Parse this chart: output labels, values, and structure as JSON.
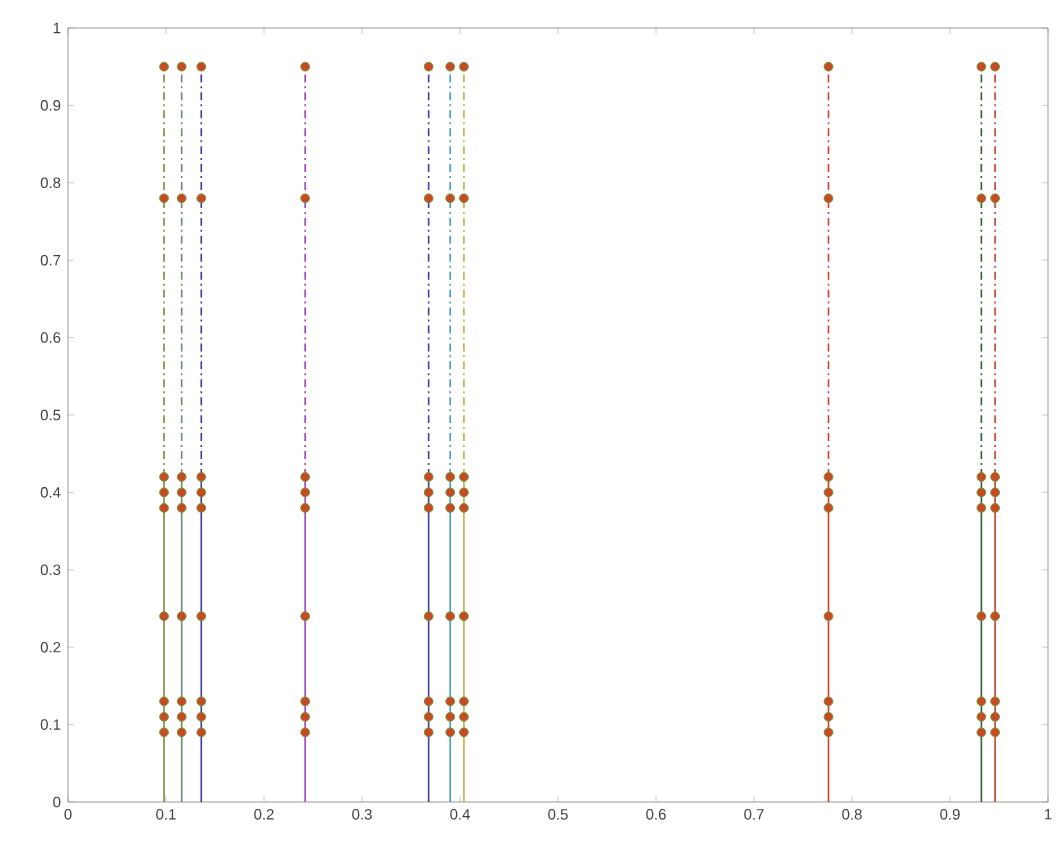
{
  "chart_data": {
    "type": "line",
    "xlim": [
      0,
      1
    ],
    "ylim": [
      0,
      1
    ],
    "xticks": [
      {
        "value": 0,
        "label": "0"
      },
      0.1,
      0.2,
      0.3,
      0.4,
      0.5,
      0.6,
      0.7,
      0.8,
      0.9,
      {
        "value": 1,
        "label": "1"
      }
    ],
    "yticks": [
      {
        "value": 0,
        "label": "0"
      },
      0.1,
      0.2,
      0.3,
      0.4,
      0.5,
      0.6,
      0.7,
      0.8,
      0.9,
      {
        "value": 1,
        "label": "1"
      }
    ],
    "grid": false,
    "series": [
      {
        "x": [
          0.098,
          0.098
        ],
        "values": [
          0,
          0.42
        ],
        "color": "#7a8a3a",
        "line_style": "solid",
        "marker": "none"
      },
      {
        "x": [
          0.098,
          0.098
        ],
        "values": [
          0.42,
          0.95
        ],
        "color": "#7a8a3a",
        "line_style": "dashed",
        "marker": "none"
      },
      {
        "x": [
          0.116,
          0.116
        ],
        "values": [
          0,
          0.42
        ],
        "color": "#6a8a6a",
        "line_style": "solid",
        "marker": "none"
      },
      {
        "x": [
          0.116,
          0.116
        ],
        "values": [
          0.42,
          0.95
        ],
        "color": "#6a8a6a",
        "line_style": "dashed",
        "marker": "none"
      },
      {
        "x": [
          0.136,
          0.136
        ],
        "values": [
          0,
          0.42
        ],
        "color": "#3a3aa0",
        "line_style": "solid",
        "marker": "none"
      },
      {
        "x": [
          0.136,
          0.136
        ],
        "values": [
          0.42,
          0.95
        ],
        "color": "#3a3aa0",
        "line_style": "dashed",
        "marker": "none"
      },
      {
        "x": [
          0.242,
          0.242
        ],
        "values": [
          0,
          0.42
        ],
        "color": "#a040c0",
        "line_style": "solid",
        "marker": "none"
      },
      {
        "x": [
          0.242,
          0.242
        ],
        "values": [
          0.42,
          0.95
        ],
        "color": "#a040c0",
        "line_style": "dashed",
        "marker": "none"
      },
      {
        "x": [
          0.368,
          0.368
        ],
        "values": [
          0,
          0.42
        ],
        "color": "#4040a0",
        "line_style": "solid",
        "marker": "none"
      },
      {
        "x": [
          0.368,
          0.368
        ],
        "values": [
          0.42,
          0.95
        ],
        "color": "#4040a0",
        "line_style": "dashed",
        "marker": "none"
      },
      {
        "x": [
          0.39,
          0.39
        ],
        "values": [
          0,
          0.42
        ],
        "color": "#40a0c0",
        "line_style": "solid",
        "marker": "none"
      },
      {
        "x": [
          0.39,
          0.39
        ],
        "values": [
          0.42,
          0.95
        ],
        "color": "#40a0c0",
        "line_style": "dashed",
        "marker": "none"
      },
      {
        "x": [
          0.404,
          0.404
        ],
        "values": [
          0,
          0.42
        ],
        "color": "#c0b040",
        "line_style": "solid",
        "marker": "none"
      },
      {
        "x": [
          0.404,
          0.404
        ],
        "values": [
          0.42,
          0.95
        ],
        "color": "#c0b040",
        "line_style": "dashed",
        "marker": "none"
      },
      {
        "x": [
          0.776,
          0.776
        ],
        "values": [
          0,
          0.42
        ],
        "color": "#d04030",
        "line_style": "solid",
        "marker": "none"
      },
      {
        "x": [
          0.776,
          0.776
        ],
        "values": [
          0.42,
          0.95
        ],
        "color": "#d04030",
        "line_style": "dashed",
        "marker": "none"
      },
      {
        "x": [
          0.932,
          0.932
        ],
        "values": [
          0,
          0.42
        ],
        "color": "#306030",
        "line_style": "solid",
        "marker": "none"
      },
      {
        "x": [
          0.932,
          0.932
        ],
        "values": [
          0.42,
          0.95
        ],
        "color": "#306030",
        "line_style": "dashed",
        "marker": "none"
      },
      {
        "x": [
          0.946,
          0.946
        ],
        "values": [
          0,
          0.42
        ],
        "color": "#c04030",
        "line_style": "solid",
        "marker": "none"
      },
      {
        "x": [
          0.946,
          0.946
        ],
        "values": [
          0.42,
          0.95
        ],
        "color": "#c04030",
        "line_style": "dashed",
        "marker": "none"
      },
      {
        "type": "scatter",
        "color": "#c84a22",
        "marker": "circle",
        "x": [
          0.098,
          0.098,
          0.098,
          0.098,
          0.098,
          0.098,
          0.098,
          0.098,
          0.098,
          0.116,
          0.116,
          0.116,
          0.116,
          0.116,
          0.116,
          0.116,
          0.116,
          0.116,
          0.136,
          0.136,
          0.136,
          0.136,
          0.136,
          0.136,
          0.136,
          0.136,
          0.136,
          0.242,
          0.242,
          0.242,
          0.242,
          0.242,
          0.242,
          0.242,
          0.242,
          0.242,
          0.368,
          0.368,
          0.368,
          0.368,
          0.368,
          0.368,
          0.368,
          0.368,
          0.368,
          0.39,
          0.39,
          0.39,
          0.39,
          0.39,
          0.39,
          0.39,
          0.39,
          0.39,
          0.404,
          0.404,
          0.404,
          0.404,
          0.404,
          0.404,
          0.404,
          0.404,
          0.404,
          0.776,
          0.776,
          0.776,
          0.776,
          0.776,
          0.776,
          0.776,
          0.776,
          0.776,
          0.932,
          0.932,
          0.932,
          0.932,
          0.932,
          0.932,
          0.932,
          0.932,
          0.932,
          0.946,
          0.946,
          0.946,
          0.946,
          0.946,
          0.946,
          0.946,
          0.946,
          0.946
        ],
        "values": [
          0.09,
          0.11,
          0.13,
          0.24,
          0.38,
          0.4,
          0.42,
          0.78,
          0.95,
          0.09,
          0.11,
          0.13,
          0.24,
          0.38,
          0.4,
          0.42,
          0.78,
          0.95,
          0.09,
          0.11,
          0.13,
          0.24,
          0.38,
          0.4,
          0.42,
          0.78,
          0.95,
          0.09,
          0.11,
          0.13,
          0.24,
          0.38,
          0.4,
          0.42,
          0.78,
          0.95,
          0.09,
          0.11,
          0.13,
          0.24,
          0.38,
          0.4,
          0.42,
          0.78,
          0.95,
          0.09,
          0.11,
          0.13,
          0.24,
          0.38,
          0.4,
          0.42,
          0.78,
          0.95,
          0.09,
          0.11,
          0.13,
          0.24,
          0.38,
          0.4,
          0.42,
          0.78,
          0.95,
          0.09,
          0.11,
          0.13,
          0.24,
          0.38,
          0.4,
          0.42,
          0.78,
          0.95,
          0.09,
          0.11,
          0.13,
          0.24,
          0.38,
          0.4,
          0.42,
          0.78,
          0.95,
          0.09,
          0.11,
          0.13,
          0.24,
          0.38,
          0.4,
          0.42,
          0.78,
          0.95
        ]
      }
    ]
  }
}
